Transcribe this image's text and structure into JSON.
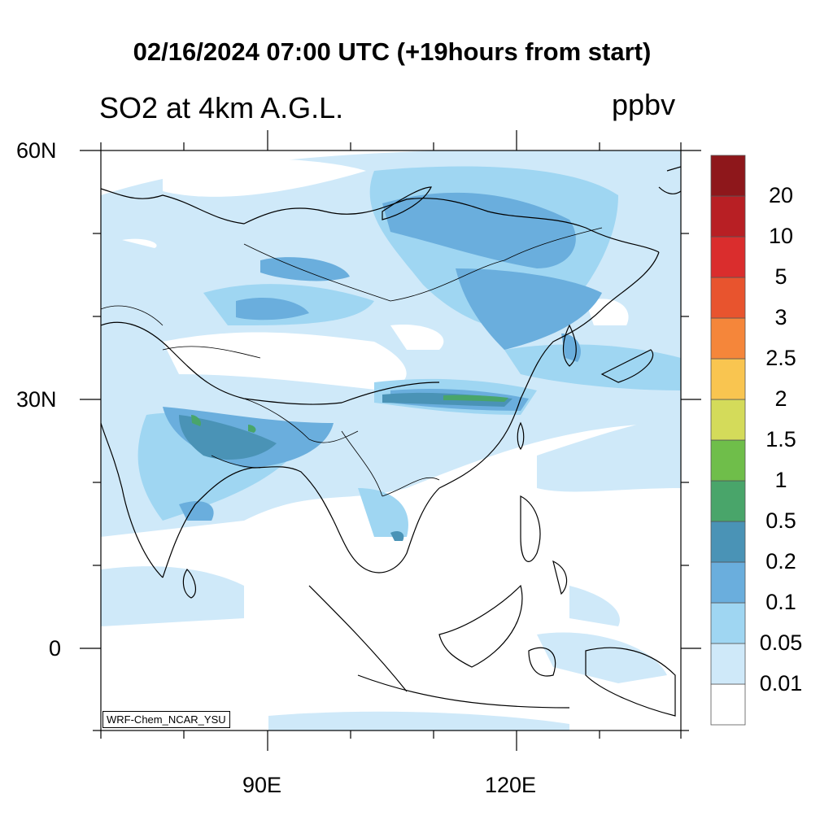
{
  "title": "02/16/2024 07:00 UTC (+19hours from start)",
  "subtitle": "SO2 at 4km A.G.L.",
  "units": "ppbv",
  "model_label": "WRF-Chem_NCAR_YSU",
  "lat_labels": [
    "60N",
    "30N",
    "0"
  ],
  "lon_labels": [
    "90E",
    "120E"
  ],
  "colorbar": {
    "levels": [
      "0.01",
      "0.05",
      "0.1",
      "0.2",
      "0.5",
      "1",
      "1.5",
      "2",
      "2.5",
      "3",
      "5",
      "10",
      "20"
    ],
    "colors": [
      "#ffffff",
      "#cfe9f9",
      "#9fd6f2",
      "#6aaedd",
      "#4a93b6",
      "#49a56a",
      "#6fbe4a",
      "#d4db5a",
      "#f9c550",
      "#f5863a",
      "#e8542e",
      "#da2d2d",
      "#b81f24",
      "#8e171b"
    ]
  }
}
